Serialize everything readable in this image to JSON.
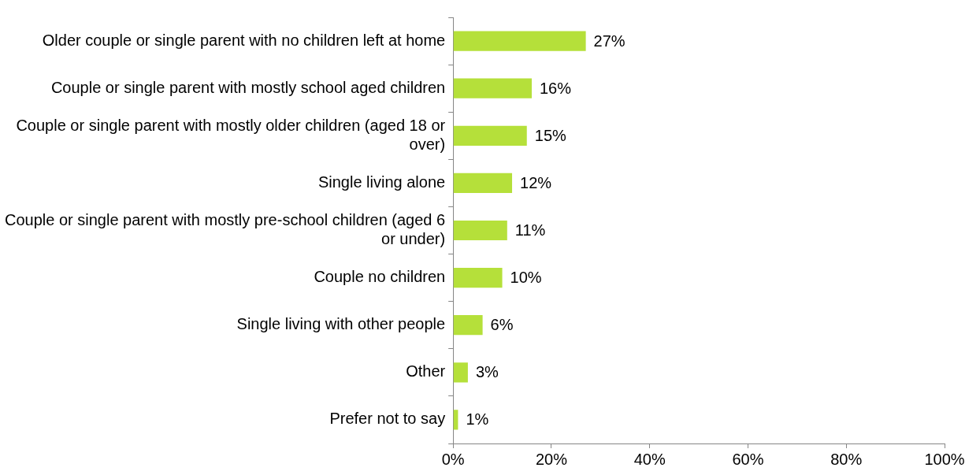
{
  "chart_data": {
    "type": "bar",
    "orientation": "horizontal",
    "categories": [
      "Older couple or single parent with no children left at home",
      "Couple or single parent with mostly school aged children",
      "Couple or single parent with mostly older children (aged 18 or over)",
      "Single living alone",
      "Couple or single parent with mostly pre-school children (aged 6 or under)",
      "Couple no children",
      "Single living with other people",
      "Other",
      "Prefer not to say"
    ],
    "values": [
      27,
      16,
      15,
      12,
      11,
      10,
      6,
      3,
      1
    ],
    "value_labels": [
      "27%",
      "16%",
      "15%",
      "12%",
      "11%",
      "10%",
      "6%",
      "3%",
      "1%"
    ],
    "color": "#b5e03a",
    "xlim": [
      0,
      100
    ],
    "xticks": [
      {
        "value": 0,
        "label": "0%"
      },
      {
        "value": 20,
        "label": "20%"
      },
      {
        "value": 40,
        "label": "40%"
      },
      {
        "value": 60,
        "label": "60%"
      },
      {
        "value": 80,
        "label": "80%"
      },
      {
        "value": 100,
        "label": "100%"
      }
    ],
    "grid": false,
    "legend": false
  }
}
